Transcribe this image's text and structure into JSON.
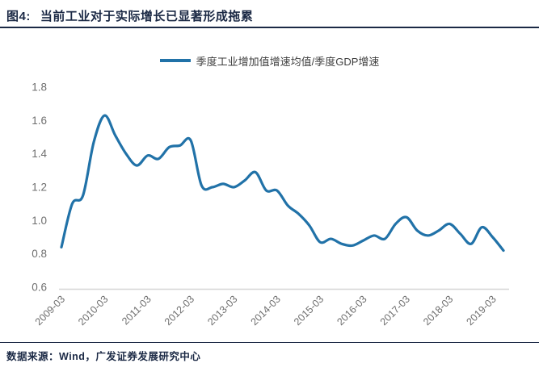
{
  "header": {
    "figure_label": "图4:",
    "title": "当前工业对于实际增长已显著形成拖累"
  },
  "legend": {
    "label": "季度工业增加值增速均值/季度GDP增速"
  },
  "footer": {
    "source": "数据来源：Wind，广发证券发展研究中心"
  },
  "colors": {
    "line_blue": "#2172a8",
    "title_navy": "#1b2945",
    "axis_text_gray": "#6e6e6e",
    "axis_line_gray": "#d6d6d6"
  },
  "chart_data": {
    "type": "line",
    "title": "",
    "xlabel": "",
    "ylabel": "",
    "legend_entries": [
      "季度工业增加值增速均值/季度GDP增速"
    ],
    "legend_position": "top-center",
    "grid": false,
    "ylim": [
      0.6,
      1.8
    ],
    "y_ticks": [
      "1.8",
      "1.6",
      "1.4",
      "1.2",
      "1.0",
      "0.8",
      "0.6"
    ],
    "x_tick_labels": [
      "2009-03",
      "2010-03",
      "2011-03",
      "2012-03",
      "2013-03",
      "2014-03",
      "2015-03",
      "2016-03",
      "2017-03",
      "2018-03",
      "2019-03"
    ],
    "x": [
      "2009-03",
      "2009-06",
      "2009-09",
      "2009-12",
      "2010-03",
      "2010-06",
      "2010-09",
      "2010-12",
      "2011-03",
      "2011-06",
      "2011-09",
      "2011-12",
      "2012-03",
      "2012-06",
      "2012-09",
      "2012-12",
      "2013-03",
      "2013-06",
      "2013-09",
      "2013-12",
      "2014-03",
      "2014-06",
      "2014-09",
      "2014-12",
      "2015-03",
      "2015-06",
      "2015-09",
      "2015-12",
      "2016-03",
      "2016-06",
      "2016-09",
      "2016-12",
      "2017-03",
      "2017-06",
      "2017-09",
      "2017-12",
      "2018-03",
      "2018-06",
      "2018-09",
      "2018-12",
      "2019-03",
      "2019-06"
    ],
    "series": [
      {
        "name": "季度工业增加值增速均值/季度GDP增速",
        "values": [
          0.84,
          1.1,
          1.15,
          1.47,
          1.63,
          1.51,
          1.4,
          1.33,
          1.39,
          1.37,
          1.44,
          1.45,
          1.48,
          1.21,
          1.2,
          1.22,
          1.2,
          1.24,
          1.29,
          1.18,
          1.18,
          1.09,
          1.04,
          0.97,
          0.87,
          0.89,
          0.86,
          0.85,
          0.88,
          0.91,
          0.89,
          0.98,
          1.02,
          0.94,
          0.91,
          0.94,
          0.98,
          0.92,
          0.86,
          0.96,
          0.9,
          0.82
        ]
      }
    ]
  }
}
